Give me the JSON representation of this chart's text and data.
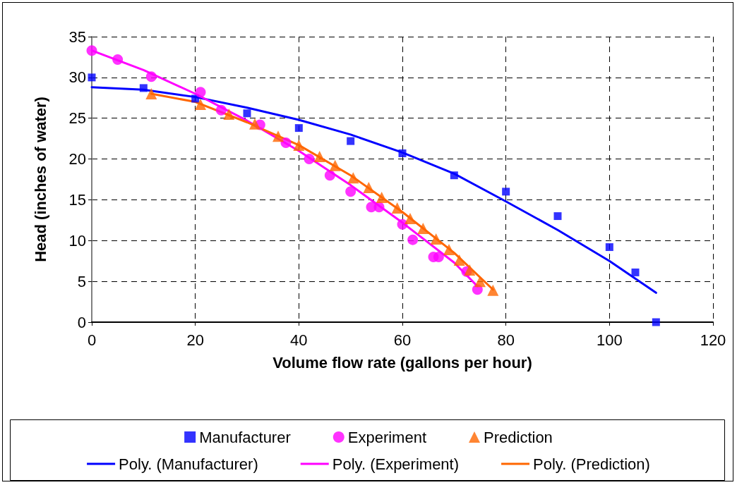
{
  "chart_data": {
    "type": "scatter",
    "xlabel": "Volume flow rate (gallons per hour)",
    "ylabel": "Head (inches of water)",
    "xlim": [
      0,
      120
    ],
    "xticks": [
      0,
      20,
      40,
      60,
      80,
      100,
      120
    ],
    "ylim": [
      0,
      35
    ],
    "yticks": [
      0,
      5,
      10,
      15,
      20,
      25,
      30,
      35
    ],
    "grid": true,
    "legend": "bottom",
    "series": [
      {
        "name": "Manufacturer",
        "type": "scatter",
        "marker": "square",
        "color": "#0000ff",
        "x": [
          0,
          10,
          20,
          30,
          40,
          50,
          60,
          70,
          80,
          90,
          100,
          105,
          109
        ],
        "values": [
          30,
          28.7,
          27.4,
          25.6,
          23.8,
          22.2,
          20.7,
          18,
          16,
          13,
          9.2,
          6.1,
          0
        ]
      },
      {
        "name": "Experiment",
        "type": "scatter",
        "marker": "circle",
        "color": "#ff00ff",
        "x": [
          0,
          5,
          11.5,
          21,
          25,
          32.5,
          37.5,
          42,
          46,
          50,
          54,
          55.5,
          60,
          62,
          66,
          67,
          72.4,
          74.5
        ],
        "values": [
          33.3,
          32.2,
          30.1,
          28.2,
          26,
          24.2,
          22,
          20,
          18,
          16,
          14.1,
          14.1,
          12,
          10.1,
          8,
          8,
          6.2,
          4
        ]
      },
      {
        "name": "Prediction",
        "type": "scatter",
        "marker": "triangle",
        "color": "#ff6600",
        "x": [
          11.5,
          21,
          26.5,
          31.5,
          36,
          40,
          44,
          47,
          50.5,
          53.5,
          56,
          59,
          61.5,
          64,
          66.5,
          69,
          71,
          73,
          75,
          77.5
        ],
        "values": [
          28,
          26.7,
          25.5,
          24.3,
          22.8,
          21.7,
          20.3,
          19.2,
          17.7,
          16.5,
          15.3,
          14,
          12.7,
          11.5,
          10.2,
          8.9,
          7.6,
          6.4,
          5,
          3.9
        ]
      },
      {
        "name": "Poly. (Manufacturer)",
        "type": "line",
        "marker": "none",
        "color": "#0000ff",
        "x": [
          0,
          10,
          20,
          30,
          40,
          50,
          60,
          70,
          80,
          90,
          100,
          109
        ],
        "values": [
          28.8,
          28.5,
          27.6,
          26.3,
          24.8,
          23,
          20.8,
          18.2,
          14.8,
          11.3,
          7.5,
          3.6
        ]
      },
      {
        "name": "Poly. (Experiment)",
        "type": "line",
        "marker": "none",
        "color": "#ff00ff",
        "x": [
          0,
          10,
          20,
          30,
          40,
          50,
          60,
          70,
          74.5
        ],
        "values": [
          33.3,
          30.9,
          28,
          24.7,
          21,
          16.8,
          12.2,
          7.3,
          4.4
        ]
      },
      {
        "name": "Poly. (Prediction)",
        "type": "line",
        "marker": "none",
        "color": "#ff6600",
        "x": [
          11.5,
          20,
          30,
          40,
          50,
          60,
          70,
          77.5
        ],
        "values": [
          28,
          27,
          24.5,
          21.7,
          18,
          13.5,
          8.5,
          4
        ]
      }
    ]
  }
}
